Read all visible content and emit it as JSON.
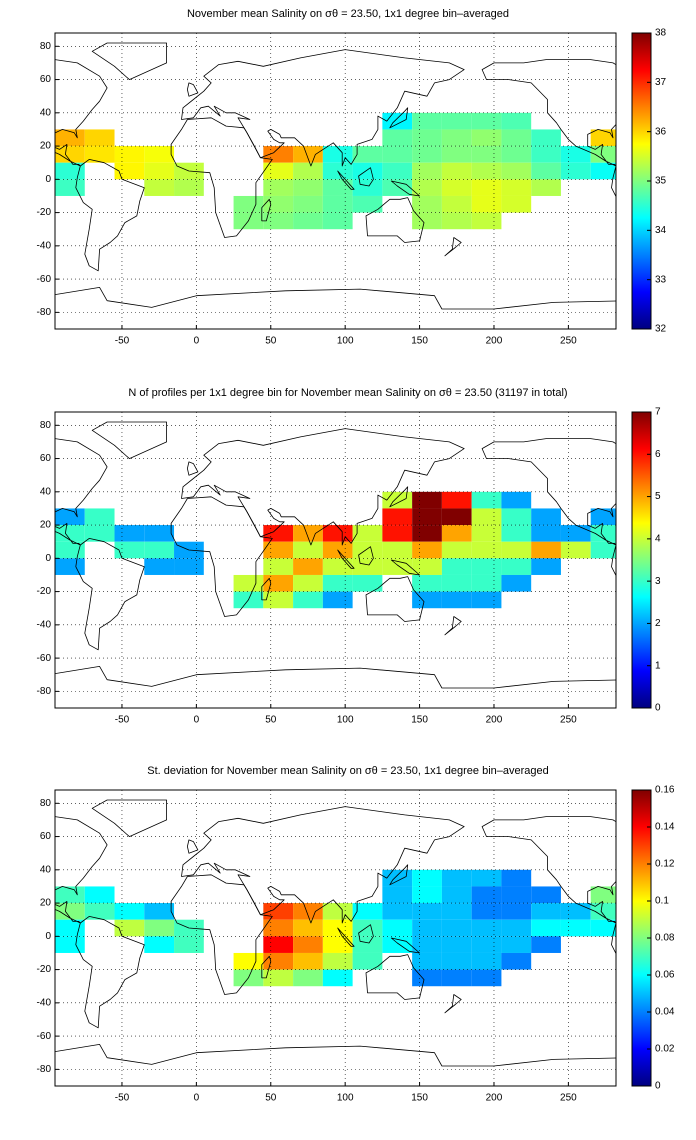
{
  "chart_data": [
    {
      "type": "heatmap",
      "colormap": "jet",
      "grid": true,
      "title": "November mean Salinity on σθ = 23.50, 1x1 degree bin–averaged",
      "x": [
        -85,
        -65,
        -45,
        -25,
        -5,
        15,
        35,
        55,
        75,
        95,
        115,
        135,
        155,
        175,
        195,
        215,
        235,
        255,
        275
      ],
      "y": [
        35,
        25,
        15,
        5,
        -5,
        -15,
        -25
      ],
      "values": [
        [
          null,
          null,
          null,
          null,
          null,
          null,
          null,
          null,
          null,
          null,
          null,
          34.2,
          34.8,
          34.8,
          34.8,
          34.7,
          null,
          null,
          null
        ],
        [
          36.2,
          36,
          null,
          null,
          null,
          null,
          null,
          null,
          null,
          null,
          null,
          34.8,
          34.9,
          35,
          35.1,
          34.9,
          34.6,
          null,
          36
        ],
        [
          36,
          35.9,
          35.8,
          35.7,
          null,
          null,
          null,
          36.5,
          36.2,
          34.4,
          34.8,
          34.8,
          34.9,
          35,
          35,
          34.9,
          34.6,
          34.4,
          35
        ],
        [
          34.5,
          null,
          35.8,
          35.6,
          35.4,
          null,
          null,
          35.6,
          35.3,
          34.5,
          34.4,
          34.6,
          35.2,
          35.4,
          35.3,
          35.2,
          34.8,
          34.5,
          34.3
        ],
        [
          34.6,
          null,
          null,
          35.4,
          35.3,
          null,
          null,
          35.2,
          35.1,
          34.8,
          34.5,
          34.7,
          35.3,
          35.5,
          35.6,
          35.5,
          35.3,
          null,
          null
        ],
        [
          null,
          null,
          null,
          null,
          null,
          null,
          35,
          35.1,
          35,
          34.8,
          34.7,
          null,
          35.2,
          35.4,
          35.6,
          35.5,
          null,
          null,
          null
        ],
        [
          null,
          null,
          null,
          null,
          null,
          null,
          35,
          35,
          34.9,
          34.8,
          null,
          null,
          35.2,
          35.3,
          35.4,
          null,
          null,
          null,
          null
        ]
      ],
      "xlim": [
        -95,
        282
      ],
      "ylim": [
        -90,
        88
      ],
      "xticks": [
        -50,
        0,
        50,
        100,
        150,
        200,
        250
      ],
      "yticks": [
        -80,
        -60,
        -40,
        -20,
        0,
        20,
        40,
        60,
        80
      ],
      "clim": [
        32,
        38
      ],
      "cticks": [
        32,
        33,
        34,
        35,
        36,
        37,
        38
      ]
    },
    {
      "type": "heatmap",
      "colormap": "jet",
      "grid": true,
      "title": "N of profiles per 1x1 degree bin for November mean Salinity on σθ = 23.50 (31197 in total)",
      "x": [
        -85,
        -65,
        -45,
        -25,
        -5,
        15,
        35,
        55,
        75,
        95,
        115,
        135,
        155,
        175,
        195,
        215,
        235,
        255,
        275
      ],
      "y": [
        35,
        25,
        15,
        5,
        -5,
        -15,
        -25
      ],
      "values": [
        [
          null,
          null,
          null,
          null,
          null,
          null,
          null,
          null,
          null,
          null,
          null,
          4,
          7,
          6,
          3,
          2,
          null,
          null,
          null
        ],
        [
          2,
          3,
          null,
          null,
          null,
          null,
          null,
          null,
          null,
          null,
          null,
          6,
          7,
          7,
          4,
          3,
          2,
          null,
          2
        ],
        [
          3,
          3,
          2,
          2,
          null,
          null,
          null,
          6,
          5,
          6,
          4,
          6,
          7,
          5,
          4,
          3,
          2,
          2,
          3
        ],
        [
          3,
          null,
          3,
          3,
          2,
          null,
          null,
          5,
          4,
          5,
          4,
          4,
          5,
          4,
          4,
          4,
          5,
          4,
          3
        ],
        [
          2,
          null,
          null,
          2,
          2,
          null,
          null,
          4,
          5,
          4,
          4,
          4,
          4,
          3,
          3,
          3,
          2,
          null,
          null
        ],
        [
          null,
          null,
          null,
          null,
          null,
          null,
          4,
          5,
          4,
          3,
          3,
          null,
          3,
          3,
          3,
          2,
          null,
          null,
          null
        ],
        [
          null,
          null,
          null,
          null,
          null,
          null,
          3,
          4,
          3,
          2,
          null,
          null,
          2,
          2,
          2,
          null,
          null,
          null,
          null
        ]
      ],
      "xlim": [
        -95,
        282
      ],
      "ylim": [
        -90,
        88
      ],
      "xticks": [
        -50,
        0,
        50,
        100,
        150,
        200,
        250
      ],
      "yticks": [
        -80,
        -60,
        -40,
        -20,
        0,
        20,
        40,
        60,
        80
      ],
      "clim": [
        0,
        7
      ],
      "cticks": [
        0,
        1,
        2,
        3,
        4,
        5,
        6,
        7
      ]
    },
    {
      "type": "heatmap",
      "colormap": "jet",
      "grid": true,
      "title": "St. deviation for November mean Salinity on σθ = 23.50, 1x1 degree bin–averaged",
      "x": [
        -85,
        -65,
        -45,
        -25,
        -5,
        15,
        35,
        55,
        75,
        95,
        115,
        135,
        155,
        175,
        195,
        215,
        235,
        255,
        275
      ],
      "y": [
        35,
        25,
        15,
        5,
        -5,
        -15,
        -25
      ],
      "values": [
        [
          null,
          null,
          null,
          null,
          null,
          null,
          null,
          null,
          null,
          null,
          null,
          0.05,
          0.06,
          0.05,
          0.05,
          0.04,
          null,
          null,
          null
        ],
        [
          0.07,
          0.06,
          null,
          null,
          null,
          null,
          null,
          null,
          null,
          null,
          null,
          0.05,
          0.06,
          0.05,
          0.04,
          0.04,
          0.04,
          null,
          0.08
        ],
        [
          0.08,
          0.07,
          0.06,
          0.05,
          null,
          null,
          null,
          0.13,
          0.12,
          0.09,
          0.06,
          0.05,
          0.05,
          0.05,
          0.04,
          0.04,
          0.05,
          0.05,
          0.07
        ],
        [
          0.06,
          null,
          0.09,
          0.08,
          0.07,
          null,
          null,
          0.12,
          0.11,
          0.1,
          0.07,
          0.06,
          0.05,
          0.05,
          0.05,
          0.05,
          0.06,
          0.06,
          0.06
        ],
        [
          0.06,
          null,
          null,
          0.06,
          0.07,
          null,
          null,
          0.14,
          0.12,
          0.1,
          0.07,
          0.06,
          0.05,
          0.05,
          0.05,
          0.05,
          0.04,
          null,
          null
        ],
        [
          null,
          null,
          null,
          null,
          null,
          null,
          0.1,
          0.12,
          0.11,
          0.09,
          0.07,
          null,
          0.05,
          0.05,
          0.05,
          0.04,
          null,
          null,
          null
        ],
        [
          null,
          null,
          null,
          null,
          null,
          null,
          0.08,
          0.09,
          0.08,
          0.06,
          null,
          null,
          0.04,
          0.04,
          0.04,
          null,
          null,
          null,
          null
        ]
      ],
      "xlim": [
        -95,
        282
      ],
      "ylim": [
        -90,
        88
      ],
      "xticks": [
        -50,
        0,
        50,
        100,
        150,
        200,
        250
      ],
      "yticks": [
        -80,
        -60,
        -40,
        -20,
        0,
        20,
        40,
        60,
        80
      ],
      "clim": [
        0,
        0.16
      ],
      "cticks": [
        0,
        0.02,
        0.04,
        0.06,
        0.08,
        0.1,
        0.12,
        0.14,
        0.16
      ]
    }
  ]
}
